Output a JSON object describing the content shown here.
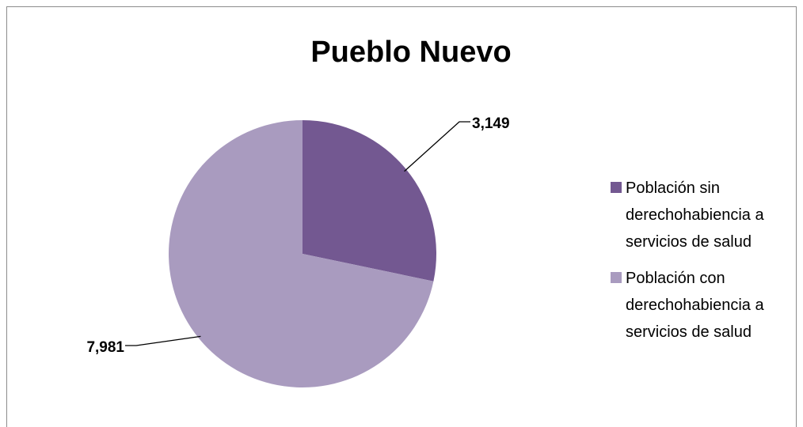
{
  "chart_data": {
    "type": "pie",
    "title": "Pueblo Nuevo",
    "categories": [
      "Población sin derechohabiencia a servicios de salud",
      "Población con derechohabiencia a servicios de salud"
    ],
    "values": [
      3149,
      7981
    ],
    "data_labels": [
      "3,149",
      "7,981"
    ],
    "colors": [
      "#735891",
      "#a99bbf"
    ],
    "legend_position": "right",
    "legend": [
      {
        "lines": [
          "Población sin",
          "derechohabiencia a",
          "servicios de salud"
        ]
      },
      {
        "lines": [
          "Población con",
          "derechohabiencia a",
          "servicios de salud"
        ]
      }
    ]
  }
}
